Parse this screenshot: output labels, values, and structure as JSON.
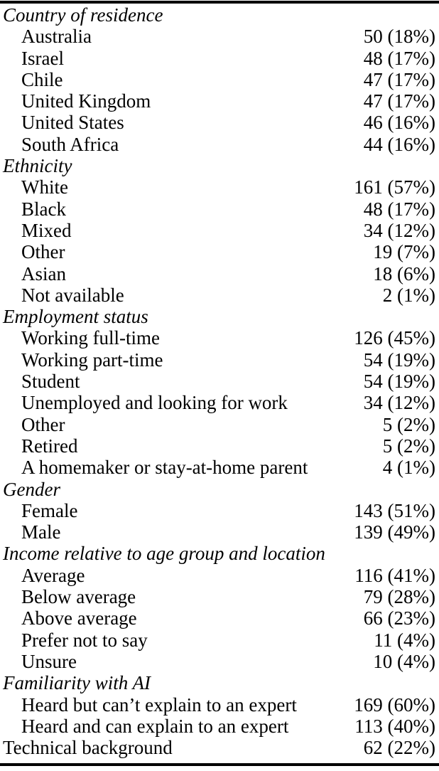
{
  "page": {
    "background": "#ffffff",
    "text_color": "#000000",
    "rule_color": "#000000"
  },
  "table": {
    "sections": [
      {
        "header": {
          "label": "Country of residence",
          "italic": true,
          "value": ""
        },
        "rows": [
          {
            "label": "Australia",
            "value": "50 (18%)"
          },
          {
            "label": "Israel",
            "value": "48 (17%)"
          },
          {
            "label": "Chile",
            "value": "47 (17%)"
          },
          {
            "label": "United Kingdom",
            "value": "47 (17%)"
          },
          {
            "label": "United States",
            "value": "46 (16%)"
          },
          {
            "label": "South Africa",
            "value": "44 (16%)"
          }
        ]
      },
      {
        "header": {
          "label": "Ethnicity",
          "italic": true,
          "value": ""
        },
        "rows": [
          {
            "label": "White",
            "value": "161 (57%)"
          },
          {
            "label": "Black",
            "value": "48 (17%)"
          },
          {
            "label": "Mixed",
            "value": "34 (12%)"
          },
          {
            "label": "Other",
            "value": "19 (7%)"
          },
          {
            "label": "Asian",
            "value": "18 (6%)"
          },
          {
            "label": "Not available",
            "value": "2 (1%)"
          }
        ]
      },
      {
        "header": {
          "label": "Employment status",
          "italic": true,
          "value": ""
        },
        "rows": [
          {
            "label": "Working full-time",
            "value": "126 (45%)"
          },
          {
            "label": "Working part-time",
            "value": "54 (19%)"
          },
          {
            "label": "Student",
            "value": "54 (19%)"
          },
          {
            "label": "Unemployed and looking for work",
            "value": "34 (12%)"
          },
          {
            "label": "Other",
            "value": "5 (2%)"
          },
          {
            "label": "Retired",
            "value": "5 (2%)"
          },
          {
            "label": "A homemaker or stay-at-home parent",
            "value": "4 (1%)"
          }
        ]
      },
      {
        "header": {
          "label": "Gender",
          "italic": true,
          "value": ""
        },
        "rows": [
          {
            "label": "Female",
            "value": "143 (51%)"
          },
          {
            "label": "Male",
            "value": "139 (49%)"
          }
        ]
      },
      {
        "header": {
          "label": "Income relative to age group and location",
          "italic": true,
          "value": ""
        },
        "rows": [
          {
            "label": "Average",
            "value": "116 (41%)"
          },
          {
            "label": "Below average",
            "value": "79 (28%)"
          },
          {
            "label": "Above average",
            "value": "66 (23%)"
          },
          {
            "label": "Prefer not to say",
            "value": "11 (4%)"
          },
          {
            "label": "Unsure",
            "value": "10 (4%)"
          }
        ]
      },
      {
        "header": {
          "label": "Familiarity with AI",
          "italic": true,
          "value": ""
        },
        "rows": [
          {
            "label": "Heard but can’t explain to an expert",
            "value": "169 (60%)"
          },
          {
            "label": "Heard and can explain to an expert",
            "value": "113 (40%)"
          }
        ]
      },
      {
        "header": {
          "label": "Technical background",
          "italic": false,
          "value": "62 (22%)"
        },
        "rows": []
      }
    ]
  }
}
